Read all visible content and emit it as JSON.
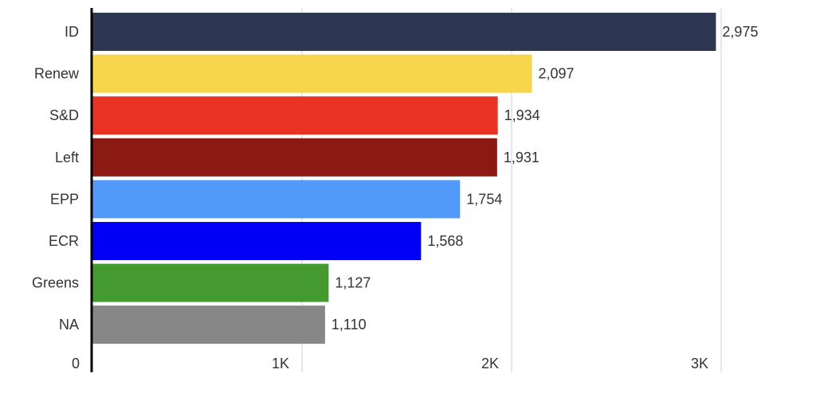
{
  "chart_data": {
    "type": "bar",
    "orientation": "horizontal",
    "categories": [
      "ID",
      "Renew",
      "S&D",
      "Left",
      "EPP",
      "ECR",
      "Greens",
      "NA"
    ],
    "values": [
      2975,
      2097,
      1934,
      1931,
      1754,
      1568,
      1127,
      1110
    ],
    "value_labels": [
      "2,975",
      "2,097",
      "1,934",
      "1,931",
      "1,754",
      "1,568",
      "1,127",
      "1,110"
    ],
    "colors": [
      "#2e3752",
      "#f7d54a",
      "#e83323",
      "#8b1a12",
      "#5399f9",
      "#0000f4",
      "#449a2e",
      "#878787"
    ],
    "x_ticks": [
      {
        "value": 0,
        "label": "0"
      },
      {
        "value": 1000,
        "label": "1K"
      },
      {
        "value": 2000,
        "label": "2K"
      },
      {
        "value": 3000,
        "label": "3K"
      }
    ],
    "xlim": [
      0,
      3000
    ],
    "grid": "vertical",
    "legend": "none",
    "title": "",
    "xlabel": "",
    "ylabel": ""
  }
}
